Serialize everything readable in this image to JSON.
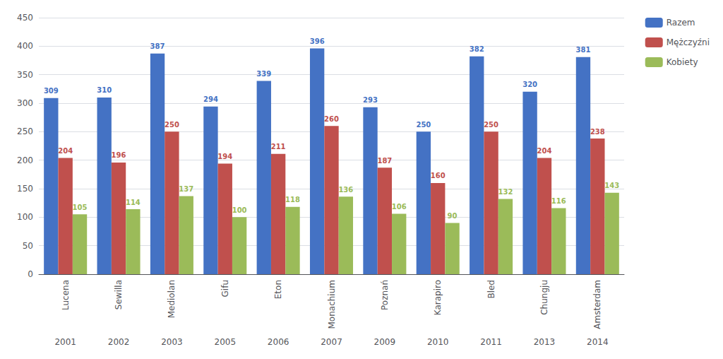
{
  "chart_data": {
    "type": "bar",
    "categories": [
      "Lucena",
      "Sewilla",
      "Mediolan",
      "Gifu",
      "Eton",
      "Monachium",
      "Poznań",
      "Karapiro",
      "Bled",
      "Chungju",
      "Amsterdam"
    ],
    "years": [
      "2001",
      "2002",
      "2003",
      "2005",
      "2006",
      "2007",
      "2009",
      "2010",
      "2011",
      "2013",
      "2014"
    ],
    "series": [
      {
        "name": "Razem",
        "color": "#4472C4",
        "values": [
          309,
          310,
          387,
          294,
          339,
          396,
          293,
          250,
          382,
          320,
          381
        ]
      },
      {
        "name": "Mężczyźni",
        "color": "#C0504D",
        "values": [
          204,
          196,
          250,
          194,
          211,
          260,
          187,
          160,
          250,
          204,
          238
        ]
      },
      {
        "name": "Kobiety",
        "color": "#9BBB59",
        "values": [
          105,
          114,
          137,
          100,
          118,
          136,
          106,
          90,
          132,
          116,
          143
        ]
      }
    ],
    "ylim": [
      0,
      450
    ],
    "yticks": [
      0,
      50,
      100,
      150,
      200,
      250,
      300,
      350,
      400,
      450
    ],
    "grid": true,
    "data_labels": true,
    "legend": "right"
  }
}
